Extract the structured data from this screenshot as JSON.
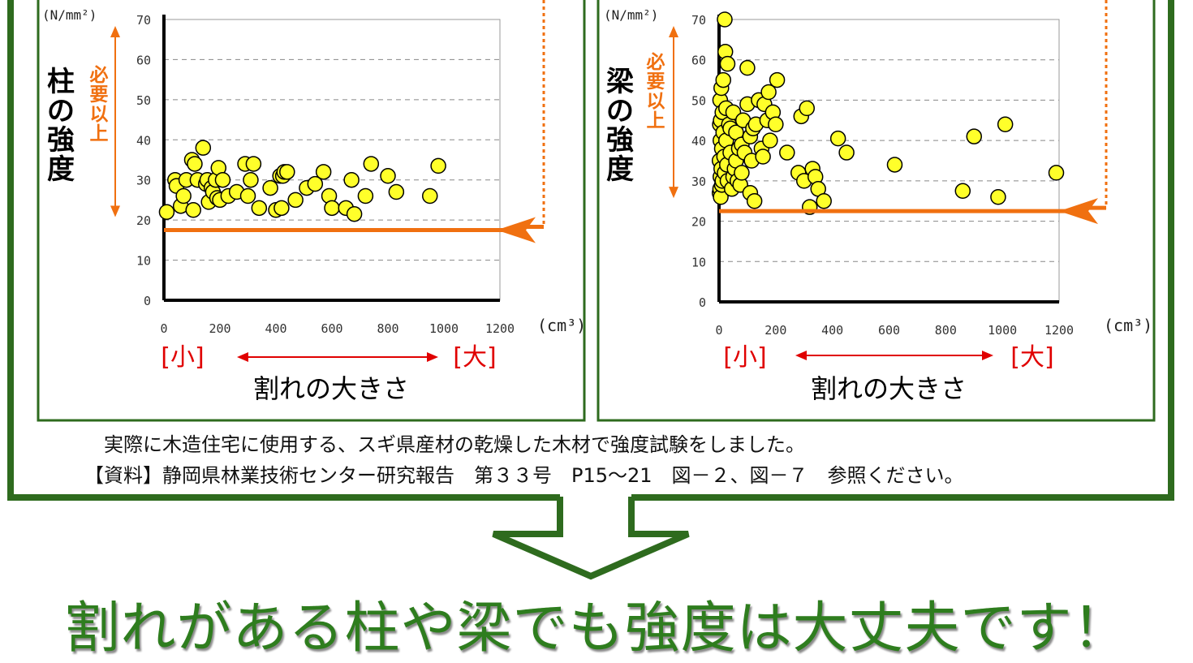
{
  "colors": {
    "frame": "#2e6b1e",
    "arrow_orange": "#f07010",
    "small_large_red": "#e00000",
    "point_fill": "#ffff2a",
    "point_stroke": "#000000",
    "grid": "#888888",
    "headline": "#2e7d1e"
  },
  "panels": [
    {
      "vertical_title": [
        "柱",
        "の",
        "強",
        "度"
      ],
      "required_label": [
        "必",
        "要",
        "以",
        "上"
      ],
      "size_axis_label": "割れの大きさ",
      "small_label": "[小]",
      "large_label": "[大]"
    },
    {
      "vertical_title": [
        "梁",
        "の",
        "強",
        "度"
      ],
      "required_label": [
        "必",
        "要",
        "以",
        "上"
      ],
      "size_axis_label": "割れの大きさ",
      "small_label": "[小]",
      "large_label": "[大]"
    }
  ],
  "chart_data": [
    {
      "type": "scatter",
      "ylabel": "(N/mm²)",
      "xlabel": "(cm³)",
      "xlim": [
        0,
        1200
      ],
      "ylim": [
        0,
        70
      ],
      "xticks": [
        "0",
        "200",
        "400",
        "600",
        "800",
        "1000",
        "1200"
      ],
      "yticks": [
        "0",
        "10",
        "20",
        "30",
        "40",
        "50",
        "60",
        "70"
      ],
      "grid": "horizontal dashed",
      "required_line": 17.5,
      "x": [
        10,
        40,
        45,
        60,
        70,
        80,
        100,
        105,
        110,
        120,
        140,
        150,
        155,
        160,
        170,
        175,
        185,
        190,
        195,
        200,
        210,
        230,
        260,
        290,
        300,
        310,
        320,
        340,
        380,
        400,
        415,
        420,
        425,
        430,
        440,
        470,
        510,
        540,
        570,
        590,
        600,
        650,
        670,
        680,
        720,
        740,
        800,
        830,
        950,
        980
      ],
      "y": [
        22,
        30,
        28.5,
        23.5,
        26,
        30,
        35,
        22.5,
        34,
        30,
        38,
        29,
        30,
        24.5,
        28,
        27,
        30,
        25.5,
        33,
        25,
        30,
        26,
        27,
        34,
        26,
        30,
        34,
        23,
        28,
        22.5,
        31,
        23,
        31,
        32,
        32,
        25,
        28,
        29,
        32,
        26,
        23,
        23,
        30,
        21.5,
        26,
        34,
        31,
        27,
        26,
        33.5
      ]
    },
    {
      "type": "scatter",
      "ylabel": "(N/mm²)",
      "xlabel": "(cm³)",
      "xlim": [
        0,
        1200
      ],
      "ylim": [
        0,
        70
      ],
      "xticks": [
        "0",
        "200",
        "400",
        "600",
        "800",
        "1000",
        "1200"
      ],
      "yticks": [
        "0",
        "10",
        "20",
        "30",
        "40",
        "50",
        "60",
        "70"
      ],
      "grid": "horizontal dashed",
      "required_line": 22.5,
      "x": [
        2,
        2,
        3,
        4,
        4,
        5,
        5,
        6,
        6,
        8,
        8,
        10,
        10,
        12,
        12,
        15,
        15,
        18,
        20,
        20,
        22,
        25,
        25,
        28,
        30,
        30,
        35,
        40,
        40,
        45,
        50,
        50,
        55,
        60,
        60,
        65,
        70,
        75,
        80,
        80,
        85,
        90,
        100,
        100,
        110,
        110,
        115,
        120,
        125,
        130,
        140,
        150,
        155,
        160,
        170,
        175,
        180,
        190,
        200,
        205,
        240,
        280,
        290,
        300,
        310,
        320,
        330,
        340,
        350,
        370,
        420,
        450,
        620,
        860,
        900,
        985,
        1010,
        1190
      ],
      "y": [
        27,
        35,
        44,
        28,
        50,
        31,
        40,
        26,
        45,
        33,
        53,
        29,
        38,
        30,
        47,
        42,
        55,
        36,
        70,
        32,
        62,
        40,
        48,
        34,
        59,
        30,
        44,
        37,
        43,
        28,
        47,
        31,
        33,
        35,
        42,
        30,
        38,
        29,
        39,
        32,
        45,
        37,
        49,
        58,
        27,
        41,
        35,
        43,
        25,
        44,
        50,
        38,
        36,
        49,
        45,
        52,
        40,
        47,
        44,
        55,
        37,
        32,
        46,
        30,
        48,
        23.5,
        33,
        31,
        28,
        25,
        40.5,
        37,
        34,
        27.5,
        41,
        26,
        44,
        32
      ]
    }
  ],
  "notes": {
    "line1": "実際に木造住宅に使用する、スギ県産材の乾燥した木材で強度試験をしました。",
    "line2": "【資料】静岡県林業技術センター研究報告　第３３号　P15～21　図－２、図－７　参照ください。"
  },
  "headline": "割れがある柱や梁でも強度は大丈夫です！"
}
